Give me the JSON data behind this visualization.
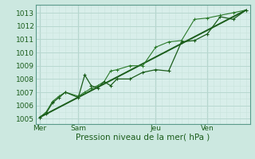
{
  "background_color": "#cce8e0",
  "plot_bg_color": "#d8eeea",
  "grid_color_major": "#b8d8d0",
  "grid_color_minor": "#c8e4dc",
  "line_color_dark": "#1a5c1a",
  "line_color_light": "#2a7a2a",
  "xlabel": "Pression niveau de la mer( hPa )",
  "ylabel_ticks": [
    1005,
    1006,
    1007,
    1008,
    1009,
    1010,
    1011,
    1012,
    1013
  ],
  "ylim": [
    1004.6,
    1013.6
  ],
  "xlim": [
    -0.3,
    16.3
  ],
  "day_labels": [
    "Mer",
    "Sam",
    "Jeu",
    "Ven"
  ],
  "day_positions": [
    0,
    3,
    9,
    13
  ],
  "series1_x": [
    0,
    0.5,
    1.0,
    1.5,
    2.0,
    3.0,
    3.5,
    4.0,
    4.5,
    5.0,
    5.5,
    6.0,
    7.0,
    8.0,
    9.0,
    10.0,
    11.0,
    12.0,
    13.0,
    14.0,
    15.0,
    16.0
  ],
  "series1_y": [
    1005.1,
    1005.4,
    1006.2,
    1006.6,
    1007.0,
    1006.6,
    1008.3,
    1007.5,
    1007.3,
    1007.8,
    1007.5,
    1008.0,
    1008.0,
    1008.5,
    1008.7,
    1008.6,
    1010.8,
    1010.9,
    1011.4,
    1012.7,
    1012.5,
    1013.2
  ],
  "series2_x": [
    0,
    0.5,
    1.0,
    1.5,
    2.0,
    3.0,
    3.5,
    4.0,
    4.5,
    5.0,
    5.5,
    6.0,
    7.0,
    8.0,
    9.0,
    10.0,
    11.0,
    12.0,
    13.0,
    14.0,
    15.0,
    16.0
  ],
  "series2_y": [
    1005.1,
    1005.5,
    1006.3,
    1006.7,
    1007.0,
    1006.7,
    1007.0,
    1007.3,
    1007.5,
    1007.8,
    1008.6,
    1008.7,
    1009.0,
    1009.0,
    1010.4,
    1010.8,
    1010.9,
    1012.5,
    1012.6,
    1012.8,
    1013.0,
    1013.2
  ],
  "trend_x": [
    0,
    16.0
  ],
  "trend_y": [
    1005.1,
    1013.2
  ],
  "xlabel_fontsize": 7.5,
  "tick_fontsize": 6.5
}
